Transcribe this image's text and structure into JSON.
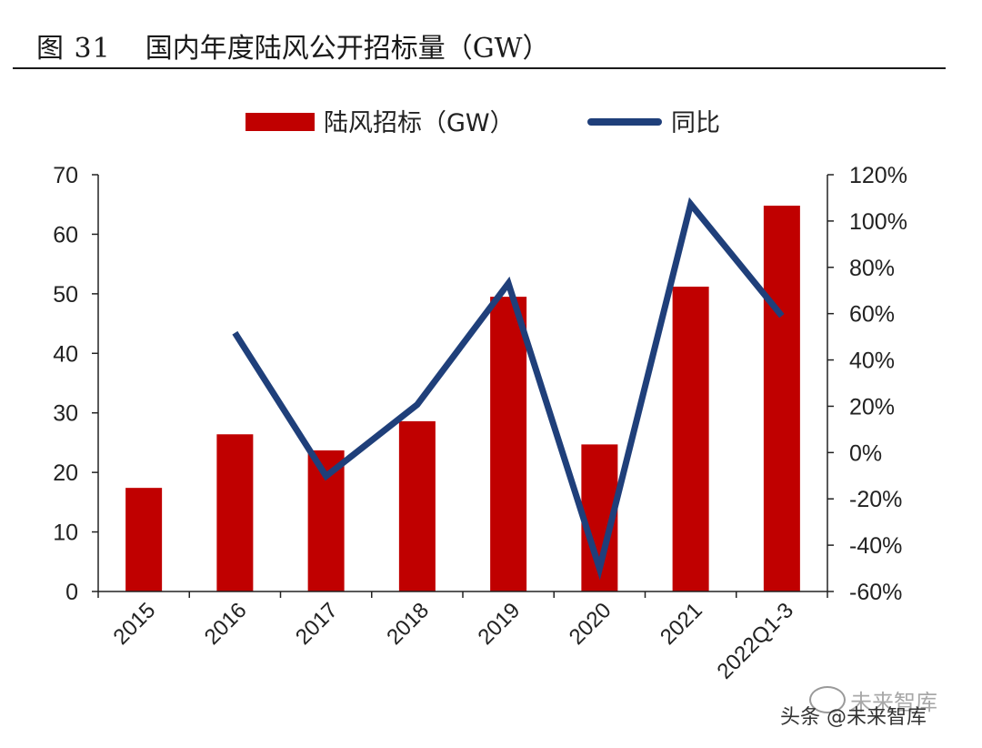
{
  "figure": {
    "number": "图 31",
    "title": "国内年度陆风公开招标量（GW）"
  },
  "chart_data": {
    "type": "bar",
    "categories": [
      "2015",
      "2016",
      "2017",
      "2018",
      "2019",
      "2020",
      "2021",
      "2022Q1-3"
    ],
    "series": [
      {
        "name": "陆风招标（GW）",
        "kind": "bar",
        "axis": "left",
        "color": "#c00000",
        "values": [
          17.4,
          26.4,
          23.7,
          28.6,
          49.5,
          24.7,
          51.2,
          64.8
        ]
      },
      {
        "name": "同比",
        "kind": "line",
        "axis": "right",
        "color": "#1f3f7a",
        "values": [
          null,
          51.7,
          -10.2,
          20.7,
          73.1,
          -50.1,
          107.3,
          59.0
        ]
      }
    ],
    "left_axis": {
      "min": 0,
      "max": 70,
      "step": 10,
      "ticks": [
        "0",
        "10",
        "20",
        "30",
        "40",
        "50",
        "60",
        "70"
      ]
    },
    "right_axis": {
      "min": -60,
      "max": 120,
      "step": 20,
      "ticks": [
        "-60%",
        "-40%",
        "-20%",
        "0%",
        "20%",
        "40%",
        "60%",
        "80%",
        "100%",
        "120%"
      ]
    },
    "legend": [
      "陆风招标（GW）",
      "同比"
    ],
    "legend_position": "top-center",
    "grid": false,
    "xlabel": "",
    "ylabel": "",
    "y2label": ""
  },
  "watermark": {
    "line1": "未来智库",
    "line2": "头条 @未来智库"
  }
}
